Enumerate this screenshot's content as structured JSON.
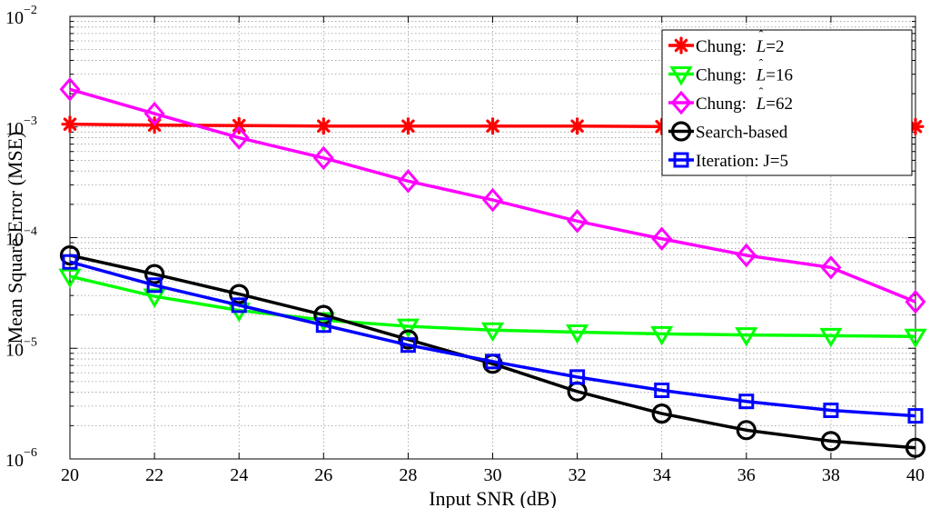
{
  "chart_data": {
    "type": "line",
    "title": "",
    "xlabel": "Input SNR (dB)",
    "ylabel": "Mean Square Error (MSE)",
    "xlim": [
      20,
      40
    ],
    "ylim": [
      1e-06,
      0.01
    ],
    "yscale": "log",
    "grid": true,
    "legend_position": "top-right",
    "x_ticks": [
      {
        "value": 20,
        "label": "20"
      },
      {
        "value": 22,
        "label": "22"
      },
      {
        "value": 24,
        "label": "24"
      },
      {
        "value": 26,
        "label": "26"
      },
      {
        "value": 28,
        "label": "28"
      },
      {
        "value": 30,
        "label": "30"
      },
      {
        "value": 32,
        "label": "32"
      },
      {
        "value": 34,
        "label": "34"
      },
      {
        "value": 36,
        "label": "36"
      },
      {
        "value": 38,
        "label": "38"
      },
      {
        "value": 40,
        "label": "40"
      }
    ],
    "y_ticks": [
      {
        "value": 1e-06,
        "base": "10",
        "exp": "−6"
      },
      {
        "value": 1e-05,
        "base": "10",
        "exp": "−5"
      },
      {
        "value": 0.0001,
        "base": "10",
        "exp": "−4"
      },
      {
        "value": 0.001,
        "base": "10",
        "exp": "−3"
      },
      {
        "value": 0.01,
        "base": "10",
        "exp": "−2"
      }
    ],
    "x": [
      20,
      22,
      24,
      26,
      28,
      30,
      32,
      34,
      36,
      38,
      40
    ],
    "series": [
      {
        "name": "Chung: L̂=2",
        "legend_prefix": "Chung: ",
        "legend_var": "L",
        "legend_suffix": "=2",
        "color": "#ff0000",
        "marker": "asterisk",
        "values": [
          0.00106,
          0.00104,
          0.00103,
          0.00102,
          0.00102,
          0.00102,
          0.00102,
          0.00101,
          0.00101,
          0.00101,
          0.00101
        ]
      },
      {
        "name": "Chung: L̂=16",
        "legend_prefix": "Chung: ",
        "legend_var": "L",
        "legend_suffix": "=16",
        "color": "#00ff00",
        "marker": "triangle-down",
        "values": [
          4.47e-05,
          2.95e-05,
          2.2e-05,
          1.8e-05,
          1.58e-05,
          1.46e-05,
          1.4e-05,
          1.35e-05,
          1.32e-05,
          1.3e-05,
          1.28e-05
        ]
      },
      {
        "name": "Chung: L̂=62",
        "legend_prefix": "Chung: ",
        "legend_var": "L",
        "legend_suffix": "=62",
        "color": "#ff00ff",
        "marker": "diamond",
        "values": [
          0.00219,
          0.00132,
          0.0008,
          0.000525,
          0.000324,
          0.000219,
          0.000141,
          9.77e-05,
          6.92e-05,
          5.37e-05,
          2.63e-05
        ]
      },
      {
        "name": "Search-based",
        "legend_prefix": "Search-based",
        "legend_var": "",
        "legend_suffix": "",
        "color": "#000000",
        "marker": "circle",
        "values": [
          6.92e-05,
          4.68e-05,
          3.09e-05,
          2e-05,
          1.2e-05,
          7.24e-06,
          4.07e-06,
          2.57e-06,
          1.82e-06,
          1.45e-06,
          1.26e-06
        ]
      },
      {
        "name": "Iteration: J=5",
        "legend_prefix": "Iteration: J=5",
        "legend_var": "",
        "legend_suffix": "",
        "color": "#0000ff",
        "marker": "square",
        "values": [
          6.03e-05,
          3.72e-05,
          2.45e-05,
          1.62e-05,
          1.07e-05,
          7.59e-06,
          5.5e-06,
          4.17e-06,
          3.31e-06,
          2.75e-06,
          2.45e-06
        ]
      }
    ]
  }
}
